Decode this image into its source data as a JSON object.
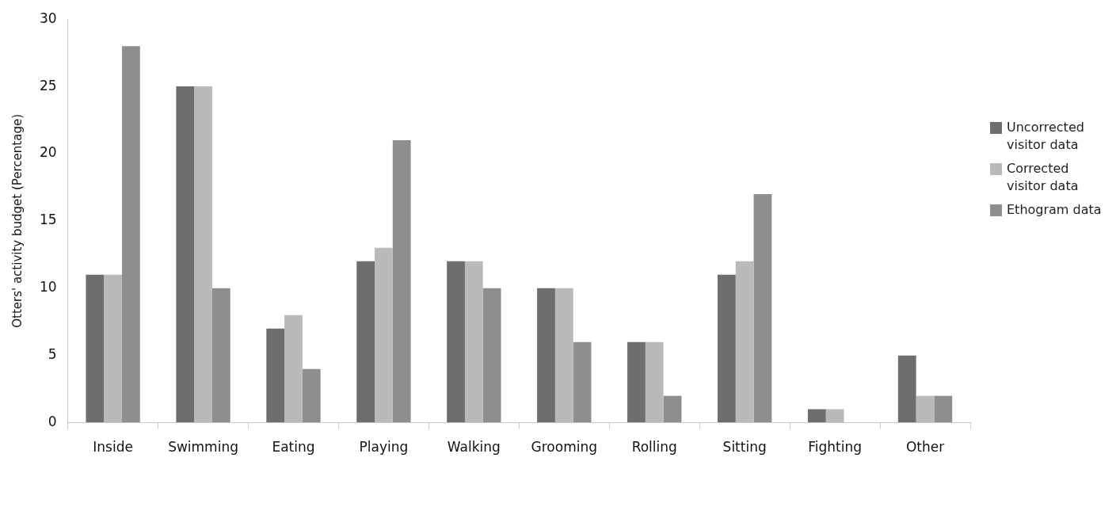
{
  "chart_data": {
    "type": "bar",
    "ylabel": "Otters' activity budget (Percentage)",
    "categories": [
      "Inside",
      "Swimming",
      "Eating",
      "Playing",
      "Walking",
      "Grooming",
      "Rolling",
      "Sitting",
      "Fighting",
      "Other"
    ],
    "series": [
      {
        "name": "Uncorrected visitor data",
        "color": "#6e6e6e",
        "values": [
          11,
          25,
          7,
          12,
          12,
          10,
          6,
          11,
          1,
          5
        ]
      },
      {
        "name": "Corrected visitor data",
        "color": "#bababa",
        "values": [
          11,
          25,
          8,
          13,
          12,
          10,
          6,
          12,
          1,
          2
        ]
      },
      {
        "name": "Ethogram data",
        "color": "#8e8e8e",
        "values": [
          28,
          10,
          4,
          21,
          10,
          6,
          2,
          17,
          0,
          2
        ]
      }
    ],
    "ylim": [
      0,
      30
    ],
    "yticks": [
      0,
      5,
      10,
      15,
      20,
      25,
      30
    ],
    "grid": false,
    "legend": "right"
  }
}
